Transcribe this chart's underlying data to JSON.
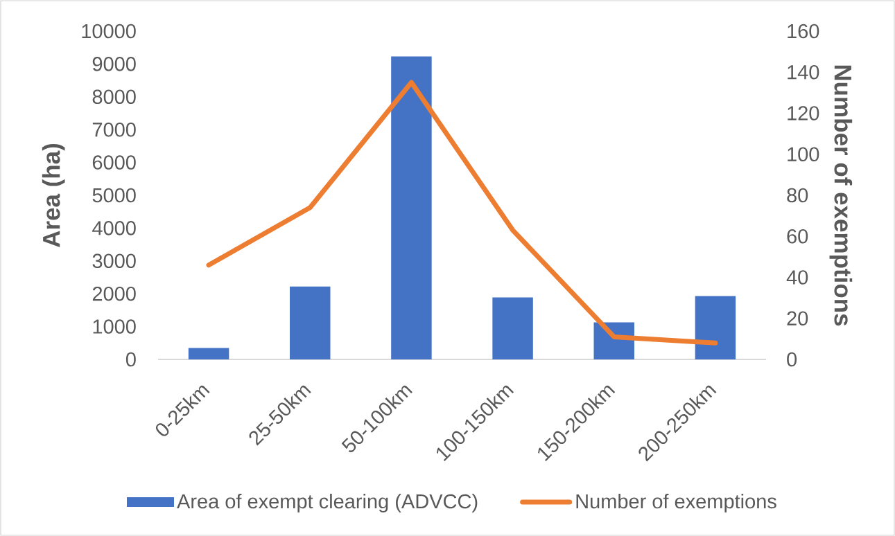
{
  "chart_data": {
    "type": "bar",
    "categories": [
      "0-25km",
      "25-50km",
      "50-100km",
      "100-150km",
      "150-200km",
      "200-250km"
    ],
    "ylabel": "Area (ha)",
    "y2label": "Number of exemptions",
    "ylim": [
      0,
      10000
    ],
    "yticks": [
      0,
      1000,
      2000,
      3000,
      4000,
      5000,
      6000,
      7000,
      8000,
      9000,
      10000
    ],
    "y2lim": [
      0,
      160
    ],
    "y2ticks": [
      0,
      20,
      40,
      60,
      80,
      100,
      120,
      140,
      160
    ],
    "legend": "bottom",
    "marker": "none",
    "line_style": "solid",
    "series": [
      {
        "name": "Area of exempt clearing (ADVCC)",
        "color": "#4472c4",
        "values": [
          350,
          2220,
          9230,
          1890,
          1130,
          1930
        ]
      },
      {
        "name": "Number of exemptions",
        "type": "line",
        "axis": "y2",
        "color": "#ed7d31",
        "values": [
          46,
          74,
          135,
          63,
          11,
          8
        ]
      }
    ]
  }
}
